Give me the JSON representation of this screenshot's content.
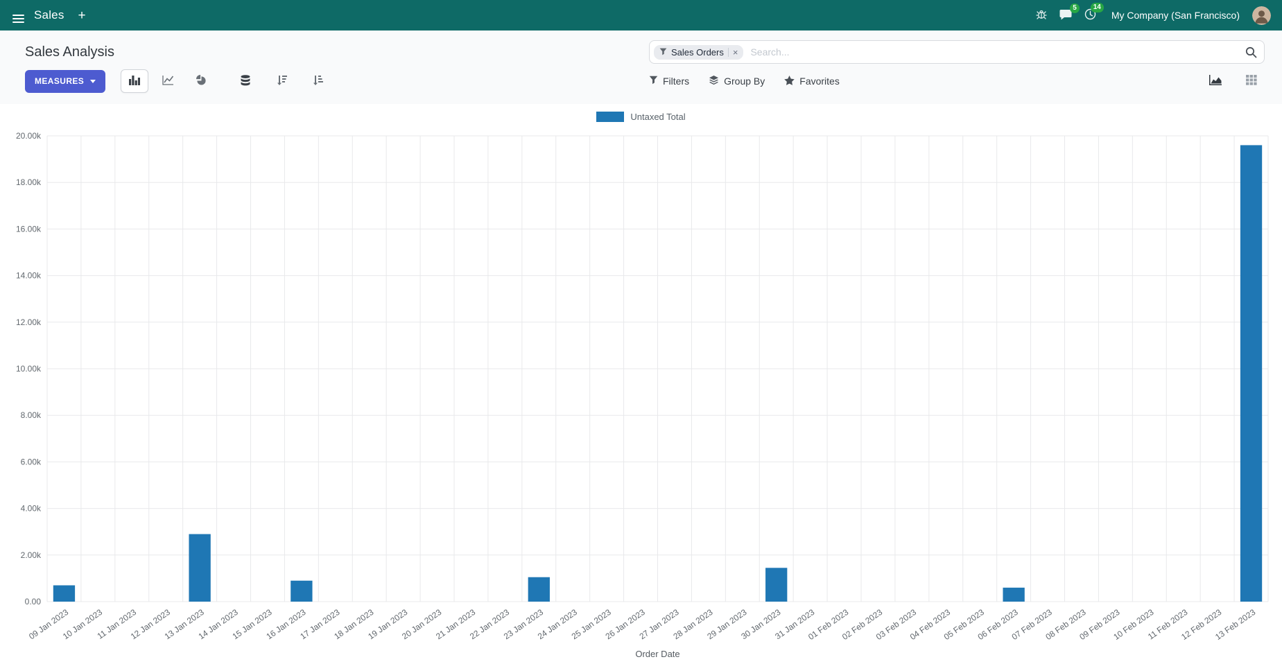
{
  "navbar": {
    "app_name": "Sales",
    "new_label": "+",
    "messages_badge": "5",
    "activities_badge": "14",
    "company": "My Company (San Francisco)"
  },
  "control_panel": {
    "title": "Sales Analysis",
    "measures_label": "MEASURES",
    "filters_label": "Filters",
    "group_by_label": "Group By",
    "favorites_label": "Favorites",
    "search": {
      "facet_label": "Sales Orders",
      "facet_remove": "×",
      "placeholder": "Search..."
    }
  },
  "colors": {
    "navbar_bg": "#0e6a66",
    "primary_button": "#4d5bd0",
    "badge_green": "#28a745",
    "bar_series": "#1f77b4"
  },
  "chart_data": {
    "type": "bar",
    "title": "",
    "xlabel": "Order Date",
    "ylabel": "",
    "ylim": [
      0,
      20000
    ],
    "grid": true,
    "legend_position": "top",
    "y_ticks": [
      {
        "value": 0,
        "label": "0.00"
      },
      {
        "value": 2000,
        "label": "2.00k"
      },
      {
        "value": 4000,
        "label": "4.00k"
      },
      {
        "value": 6000,
        "label": "6.00k"
      },
      {
        "value": 8000,
        "label": "8.00k"
      },
      {
        "value": 10000,
        "label": "10.00k"
      },
      {
        "value": 12000,
        "label": "12.00k"
      },
      {
        "value": 14000,
        "label": "14.00k"
      },
      {
        "value": 16000,
        "label": "16.00k"
      },
      {
        "value": 18000,
        "label": "18.00k"
      },
      {
        "value": 20000,
        "label": "20.00k"
      }
    ],
    "legend": [
      {
        "label": "Untaxed Total",
        "color": "#1f77b4"
      }
    ],
    "categories": [
      "09 Jan 2023",
      "10 Jan 2023",
      "11 Jan 2023",
      "12 Jan 2023",
      "13 Jan 2023",
      "14 Jan 2023",
      "15 Jan 2023",
      "16 Jan 2023",
      "17 Jan 2023",
      "18 Jan 2023",
      "19 Jan 2023",
      "20 Jan 2023",
      "21 Jan 2023",
      "22 Jan 2023",
      "23 Jan 2023",
      "24 Jan 2023",
      "25 Jan 2023",
      "26 Jan 2023",
      "27 Jan 2023",
      "28 Jan 2023",
      "29 Jan 2023",
      "30 Jan 2023",
      "31 Jan 2023",
      "01 Feb 2023",
      "02 Feb 2023",
      "03 Feb 2023",
      "04 Feb 2023",
      "05 Feb 2023",
      "06 Feb 2023",
      "07 Feb 2023",
      "08 Feb 2023",
      "09 Feb 2023",
      "10 Feb 2023",
      "11 Feb 2023",
      "12 Feb 2023",
      "13 Feb 2023"
    ],
    "series": [
      {
        "name": "Untaxed Total",
        "color": "#1f77b4",
        "values": [
          700,
          0,
          0,
          0,
          2900,
          0,
          0,
          900,
          0,
          0,
          0,
          0,
          0,
          0,
          1050,
          0,
          0,
          0,
          0,
          0,
          0,
          1450,
          0,
          0,
          0,
          0,
          0,
          0,
          600,
          0,
          0,
          0,
          0,
          0,
          0,
          19600
        ]
      }
    ]
  }
}
